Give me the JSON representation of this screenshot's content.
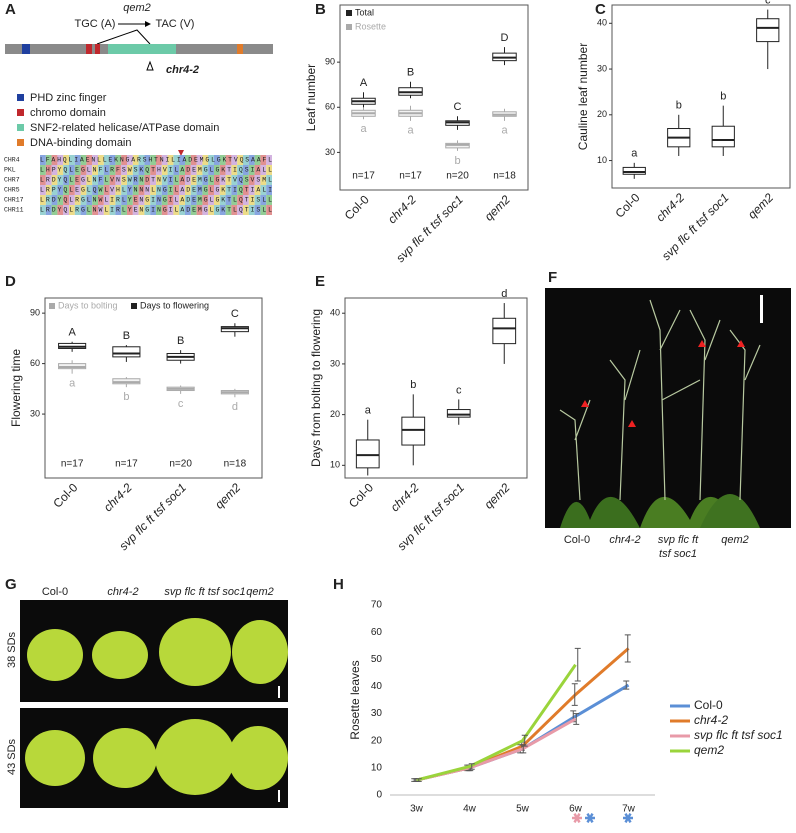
{
  "panel_letters": [
    "A",
    "B",
    "C",
    "D",
    "E",
    "F",
    "G",
    "H"
  ],
  "panel_a": {
    "mutation_allele": "qem2",
    "codon_from": "TGC (A)",
    "codon_to": "TAC (V)",
    "insertion_allele": "chr4-2",
    "domains": [
      "PHD zinc finger",
      "chromo domain",
      "SNF2-related helicase/ATPase domain",
      "DNA-binding domain"
    ],
    "alignment": [
      {
        "name": "CHR4",
        "sequence": "LFAHQLIAENLLEKNGARSHTNILIADEMGLGKTVQSAAFL"
      },
      {
        "name": "PKL",
        "sequence": "LHPYQLEGLNFLRFSWSKQTHVILADEMGLGKTIQSIALL"
      },
      {
        "name": "CHR7",
        "sequence": "LRDYQLEGLNFLVNSWRNDTNVILADEMGLGKTVQSVSML"
      },
      {
        "name": "CHR5",
        "sequence": "LRPYQLEGLQWLVHLYNNNLNGILADEMGLGKTIQTIALI"
      },
      {
        "name": "CHR17",
        "sequence": "LRDYQLRGLNWLIRLYENGINGILADEMGLGKTLQTISLL"
      },
      {
        "name": "CHR11",
        "sequence": "LRDYQLRGLNWLIRLYENGINGILADEMGLGKTLQTISLL"
      }
    ]
  },
  "chart_data": [
    {
      "type": "box",
      "ylabel": "Leaf number",
      "categories": [
        "Col-0",
        "chr4-2",
        "svp flc ft tsf soc1",
        "qem2"
      ],
      "ylim": [
        5,
        128
      ],
      "yticks": [
        30,
        60,
        90
      ],
      "legend": "upper left",
      "n_labels": [
        "n=17",
        "n=17",
        "n=20",
        "n=18"
      ],
      "series": [
        {
          "name": "Total",
          "color": "#222222",
          "values": [
            [
              58,
              62,
              64,
              66,
              70
            ],
            [
              66,
              68,
              70,
              73,
              77
            ],
            [
              45,
              48,
              50,
              51,
              54
            ],
            [
              88,
              91,
              93,
              96,
              100
            ]
          ],
          "letters": [
            "A",
            "B",
            "C",
            "D"
          ]
        },
        {
          "name": "Rosette",
          "color": "#aaaaaa",
          "values": [
            [
              52,
              54,
              56,
              58,
              60
            ],
            [
              51,
              54,
              56,
              58,
              61
            ],
            [
              31,
              33,
              35,
              36,
              38
            ],
            [
              51,
              54,
              55,
              57,
              59
            ]
          ],
          "letters": [
            "a",
            "a",
            "b",
            "a"
          ]
        }
      ]
    },
    {
      "type": "box",
      "ylabel": "Cauline leaf number",
      "categories": [
        "Col-0",
        "chr4-2",
        "svp flc ft tsf soc1",
        "qem2"
      ],
      "ylim": [
        4,
        44
      ],
      "yticks": [
        10,
        20,
        30,
        40
      ],
      "series": [
        {
          "color": "#222222",
          "values": [
            [
              6,
              7,
              7.5,
              8.5,
              9.5
            ],
            [
              11,
              13,
              15,
              17,
              20
            ],
            [
              11,
              13,
              14.5,
              17.5,
              22
            ],
            [
              30,
              36,
              39,
              41,
              43
            ]
          ],
          "letters": [
            "a",
            "b",
            "b",
            "c"
          ]
        }
      ]
    },
    {
      "type": "box",
      "ylabel": "Flowering time",
      "categories": [
        "Col-0",
        "chr4-2",
        "svp flc ft tsf soc1",
        "qem2"
      ],
      "ylim": [
        -8,
        99
      ],
      "yticks": [
        30,
        60,
        90
      ],
      "legend": "top",
      "n_labels": [
        "n=17",
        "n=17",
        "n=20",
        "n=18"
      ],
      "series": [
        {
          "name": "Days to flowering",
          "color": "#222222",
          "values": [
            [
              67,
              69,
              70,
              72,
              73
            ],
            [
              61,
              64,
              66,
              70,
              71
            ],
            [
              60,
              62,
              64,
              66,
              68
            ],
            [
              76,
              79,
              81,
              82,
              84
            ]
          ],
          "letters": [
            "A",
            "B",
            "B",
            "C"
          ]
        },
        {
          "name": "Days to bolting",
          "color": "#aaaaaa",
          "values": [
            [
              54,
              57,
              58,
              60,
              62
            ],
            [
              46,
              48,
              49,
              51,
              52
            ],
            [
              42,
              44,
              45,
              46,
              47
            ],
            [
              40,
              42,
              43,
              44,
              45
            ]
          ],
          "letters": [
            "a",
            "b",
            "c",
            "d"
          ]
        }
      ]
    },
    {
      "type": "box",
      "ylabel": "Days from bolting to flowering",
      "categories": [
        "Col-0",
        "chr4-2",
        "svp flc ft tsf soc1",
        "qem2"
      ],
      "ylim": [
        7.5,
        43
      ],
      "yticks": [
        10,
        20,
        30,
        40
      ],
      "series": [
        {
          "color": "#222222",
          "values": [
            [
              8,
              9.5,
              12,
              15,
              19
            ],
            [
              10,
              14,
              17,
              19.5,
              24
            ],
            [
              18,
              19.5,
              20,
              21,
              23
            ],
            [
              30,
              34,
              37,
              39,
              42
            ]
          ],
          "letters": [
            "a",
            "b",
            "c",
            "d"
          ]
        }
      ]
    },
    {
      "type": "line",
      "ylabel": "Rosette leaves",
      "categories": [
        "3w",
        "4w",
        "5w",
        "6w",
        "7w"
      ],
      "ylim": [
        0,
        70
      ],
      "yticks": [
        0,
        10,
        20,
        30,
        40,
        50,
        60,
        70
      ],
      "series": [
        {
          "name": "Col-0",
          "color": "#5b8fd6",
          "values": [
            5.5,
            10,
            17,
            29,
            40.5
          ],
          "errors": [
            0.5,
            1,
            1.5,
            2,
            1.5
          ]
        },
        {
          "name": "chr4-2",
          "color": "#e07b2a",
          "values": [
            5.5,
            10,
            18,
            37,
            54
          ],
          "errors": [
            0.5,
            1,
            1.5,
            4,
            5
          ]
        },
        {
          "name": "svp flc ft tsf soc1",
          "color": "#e89aa8",
          "values": [
            5.5,
            10,
            17,
            28,
            null
          ],
          "errors": [
            0.5,
            1,
            1.5,
            2,
            null
          ]
        },
        {
          "name": "qem2",
          "color": "#9ad43b",
          "values": [
            5.5,
            10.5,
            20,
            48,
            null
          ],
          "errors": [
            0.5,
            1,
            2,
            6,
            null
          ]
        }
      ]
    }
  ],
  "panel_f": {
    "labels": [
      "Col-0",
      "chr4-2",
      "svp flc ft\ntsf soc1",
      "qem2"
    ]
  },
  "panel_g": {
    "labels": [
      "Col-0",
      "chr4-2",
      "svp flc ft tsf soc1",
      "qem2"
    ],
    "rows": [
      "38 SDs",
      "43 SDs"
    ]
  }
}
